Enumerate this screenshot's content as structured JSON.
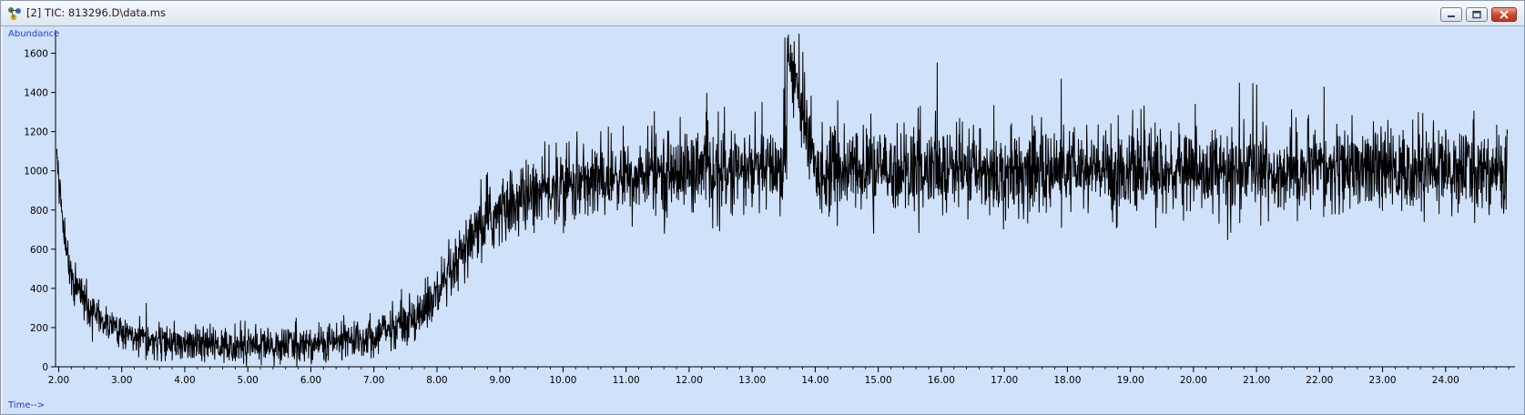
{
  "window": {
    "title": "[2] TIC: 813296.D\\data.ms",
    "controls": [
      "minimize",
      "restore",
      "close"
    ]
  },
  "colors": {
    "plot_background": "#d0e1fa",
    "trace": "#000000",
    "axis_label_text": "#1f3fd8",
    "tick_text": "#000000"
  },
  "chart_data": {
    "type": "line",
    "title": "",
    "ylabel": "Abundance",
    "xlabel": "Time-->",
    "xlim": [
      1.95,
      25.1
    ],
    "ylim": [
      0,
      1700
    ],
    "x_ticks": [
      "2.00",
      "3.00",
      "4.00",
      "5.00",
      "6.00",
      "7.00",
      "8.00",
      "9.00",
      "10.00",
      "11.00",
      "12.00",
      "13.00",
      "14.00",
      "15.00",
      "16.00",
      "17.00",
      "18.00",
      "19.00",
      "20.00",
      "21.00",
      "22.00",
      "23.00",
      "24.00"
    ],
    "y_ticks": [
      "0",
      "200",
      "400",
      "600",
      "800",
      "1000",
      "1200",
      "1400",
      "1600"
    ],
    "series": [
      {
        "x": [
          1.95,
          2.0,
          2.1,
          2.2,
          2.4,
          2.6,
          2.8,
          3.0,
          3.2,
          3.5,
          3.8,
          4.0,
          4.5,
          5.0,
          5.5,
          6.0,
          6.5,
          7.0,
          7.2,
          7.5,
          7.8,
          8.0,
          8.2,
          8.4,
          8.6,
          8.8,
          9.0,
          9.2,
          9.5,
          10.0,
          10.5,
          11.0,
          11.5,
          12.0,
          12.5,
          13.0,
          13.5,
          13.55,
          14.0,
          15.0,
          16.0,
          17.0,
          18.0,
          19.0,
          20.0,
          21.0,
          22.0,
          23.0,
          24.0,
          24.5,
          25.0
        ],
        "values": [
          1200,
          950,
          620,
          460,
          340,
          260,
          210,
          180,
          150,
          130,
          115,
          110,
          110,
          108,
          110,
          115,
          130,
          160,
          185,
          230,
          290,
          360,
          450,
          560,
          660,
          740,
          790,
          830,
          880,
          920,
          950,
          970,
          985,
          995,
          1000,
          1000,
          1010,
          1650,
          1000,
          1000,
          1000,
          1000,
          1000,
          1000,
          1000,
          1000,
          1000,
          1000,
          1010,
          1000,
          1000
        ]
      }
    ],
    "noise_amplitude": [
      {
        "x": 2.0,
        "amplitude": 90
      },
      {
        "x": 4.0,
        "amplitude": 80
      },
      {
        "x": 7.0,
        "amplitude": 90
      },
      {
        "x": 9.0,
        "amplitude": 160
      },
      {
        "x": 12.0,
        "amplitude": 190
      },
      {
        "x": 25.0,
        "amplitude": 190
      }
    ],
    "notable_peaks": [
      {
        "x": 13.52,
        "y": 1680
      },
      {
        "x": 13.5,
        "y": 1420
      },
      {
        "x": 21.0,
        "y": 1440
      },
      {
        "x": 17.9,
        "y": 1470
      }
    ],
    "grid": false,
    "legend": "none"
  }
}
